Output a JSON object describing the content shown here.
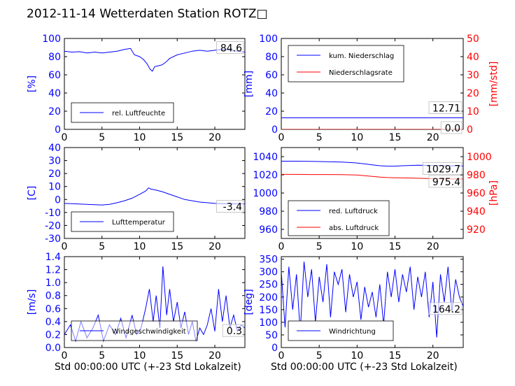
{
  "figure": {
    "title": "2012-11-14 Wetterdaten Station ROTZ□",
    "xlabel_left": "Std 00:00:00 UTC (+-23 Std Lokalzeit)",
    "xlabel_right": "Std 00:00:00 UTC (+-23 Std Lokalzeit)"
  },
  "chart_data": [
    {
      "id": "humidity",
      "type": "line",
      "title": "",
      "xlabel": "",
      "ylabel": "[%]",
      "xlim": [
        0,
        24
      ],
      "ylim": [
        0,
        100
      ],
      "xticks": [
        0,
        5,
        10,
        15,
        20
      ],
      "yticks": [
        0,
        20,
        40,
        60,
        80,
        100
      ],
      "axis_color": "#0000ff",
      "legend_position": "lower-left",
      "current_value_label": "84.6",
      "series": [
        {
          "name": "rel. Luftfeuchte",
          "color": "#0000ff",
          "x": [
            0,
            1,
            2,
            3,
            4,
            5,
            6,
            7,
            8,
            8.8,
            9.3,
            10,
            10.5,
            11,
            11.4,
            11.7,
            12,
            12.5,
            13,
            13.5,
            14,
            15,
            16,
            17,
            18,
            19,
            20,
            21,
            22,
            23,
            24
          ],
          "y": [
            86,
            85,
            85.5,
            84,
            85,
            84,
            85,
            86,
            88,
            89,
            82,
            80,
            77,
            72,
            66,
            64,
            69,
            70,
            71,
            74,
            78,
            82,
            84,
            86,
            87,
            86,
            87,
            88,
            87,
            86,
            85
          ]
        }
      ]
    },
    {
      "id": "precipitation",
      "type": "line",
      "title": "",
      "xlabel": "",
      "ylabel": "[mm]",
      "ylabel_right": "[mm/std]",
      "xlim": [
        0,
        24
      ],
      "ylim": [
        0,
        100
      ],
      "ylim_right": [
        0,
        50
      ],
      "xticks": [
        0,
        5,
        10,
        15,
        20
      ],
      "yticks": [
        0,
        20,
        40,
        60,
        80,
        100
      ],
      "yticks_right": [
        0,
        10,
        20,
        30,
        40,
        50
      ],
      "axis_color": "#0000ff",
      "axis_color_right": "#ff0000",
      "legend_position": "upper-left",
      "current_value_labels": [
        "12.71",
        "0.0"
      ],
      "series": [
        {
          "name": "kum. Niederschlag",
          "color": "#0000ff",
          "axis": "left",
          "x": [
            0,
            24
          ],
          "y": [
            12.71,
            12.71
          ]
        },
        {
          "name": "Niederschlagsrate",
          "color": "#ff0000",
          "axis": "right",
          "x": [
            0,
            24
          ],
          "y": [
            0.0,
            0.0
          ]
        }
      ]
    },
    {
      "id": "temperature",
      "type": "line",
      "title": "",
      "xlabel": "",
      "ylabel": "[C]",
      "xlim": [
        0,
        24
      ],
      "ylim": [
        -30,
        40
      ],
      "xticks": [
        0,
        5,
        10,
        15,
        20
      ],
      "yticks": [
        -30,
        -20,
        -10,
        0,
        10,
        20,
        30,
        40
      ],
      "axis_color": "#0000ff",
      "legend_position": "lower-left",
      "current_value_label": "-3.4",
      "series": [
        {
          "name": "Lufttemperatur",
          "color": "#0000ff",
          "x": [
            0,
            1,
            2,
            3,
            4,
            5,
            6,
            7,
            8,
            9,
            10,
            10.8,
            11.2,
            11.5,
            12,
            13,
            14,
            15,
            16,
            17,
            18,
            19,
            20,
            21,
            22,
            23,
            24
          ],
          "y": [
            -3,
            -3.2,
            -3.5,
            -3.8,
            -4,
            -4.2,
            -3.8,
            -2.5,
            -1,
            1,
            4,
            6.5,
            9,
            8,
            7.5,
            6,
            4,
            2,
            0,
            -1,
            -2,
            -2.5,
            -3,
            -3.2,
            -3.3,
            -3.4,
            -3.4
          ]
        }
      ]
    },
    {
      "id": "pressure",
      "type": "line",
      "title": "",
      "xlabel": "",
      "ylabel": "",
      "ylabel_right": "[hPa]",
      "xlim": [
        0,
        24
      ],
      "ylim": [
        950,
        1050
      ],
      "ylim_right": [
        910,
        1010
      ],
      "xticks": [
        0,
        5,
        10,
        15,
        20
      ],
      "yticks": [
        960,
        980,
        1000,
        1020,
        1040
      ],
      "yticks_right": [
        920,
        940,
        960,
        980,
        1000
      ],
      "axis_color": "#0000ff",
      "axis_color_right": "#ff0000",
      "legend_position": "lower-left",
      "current_value_labels": [
        "1029.7",
        "975.4"
      ],
      "series": [
        {
          "name": "red. Luftdruck",
          "color": "#0000ff",
          "axis": "left",
          "x": [
            0,
            2,
            4,
            6,
            8,
            10,
            11,
            12,
            13,
            14,
            15,
            16,
            18,
            20,
            22,
            24
          ],
          "y": [
            1035,
            1035,
            1034.8,
            1034.5,
            1034,
            1033,
            1032,
            1031,
            1030,
            1029.5,
            1029.5,
            1030,
            1030.5,
            1030.3,
            1030,
            1029.7
          ]
        },
        {
          "name": "abs. Luftdruck",
          "color": "#ff0000",
          "axis": "right",
          "x": [
            0,
            2,
            4,
            6,
            8,
            10,
            11,
            12,
            13,
            14,
            15,
            16,
            18,
            20,
            22,
            24
          ],
          "y": [
            980.5,
            980.5,
            980.3,
            980.3,
            980.2,
            979.8,
            979,
            978.2,
            977.5,
            977,
            976.8,
            976.6,
            976.2,
            975.8,
            975.5,
            975.4
          ]
        }
      ]
    },
    {
      "id": "windspeed",
      "type": "line",
      "title": "",
      "xlabel": "",
      "ylabel": "[m/s]",
      "xlim": [
        0,
        24
      ],
      "ylim": [
        0,
        1.4
      ],
      "xticks": [
        0,
        5,
        10,
        15,
        20
      ],
      "yticks": [
        0.0,
        0.2,
        0.4,
        0.6,
        0.8,
        1.0,
        1.2,
        1.4
      ],
      "axis_color": "#0000ff",
      "legend_position": "lower-left",
      "current_value_label": "0.3",
      "series": [
        {
          "name": "Windgeschwindigkeit",
          "color": "#0000ff",
          "x": [
            0,
            0.8,
            1.5,
            2.2,
            3,
            3.8,
            4.5,
            5.2,
            6,
            6.8,
            7.5,
            8.2,
            9,
            9.6,
            10.2,
            10.8,
            11.3,
            11.8,
            12.2,
            12.7,
            13.1,
            13.6,
            14,
            14.5,
            15,
            15.5,
            16,
            16.5,
            17,
            17.5,
            18,
            18.5,
            19,
            19.5,
            20,
            20.5,
            21,
            21.5,
            22,
            22.5,
            23,
            23.5,
            24
          ],
          "y": [
            0.2,
            0.35,
            0.1,
            0.4,
            0.15,
            0.3,
            0.5,
            0.1,
            0.35,
            0.2,
            0.45,
            0.15,
            0.5,
            0.2,
            0.3,
            0.6,
            0.9,
            0.4,
            0.8,
            0.3,
            1.25,
            0.5,
            0.9,
            0.4,
            0.7,
            0.3,
            0.55,
            0.2,
            0.4,
            0.1,
            0.3,
            0.2,
            0.35,
            0.6,
            0.25,
            0.9,
            0.4,
            0.8,
            0.3,
            0.5,
            0.25,
            0.35,
            0.3
          ]
        }
      ]
    },
    {
      "id": "winddirection",
      "type": "line",
      "title": "",
      "xlabel": "",
      "ylabel": "[deg]",
      "xlim": [
        0,
        24
      ],
      "ylim": [
        0,
        360
      ],
      "xticks": [
        0,
        5,
        10,
        15,
        20
      ],
      "yticks": [
        0,
        50,
        100,
        150,
        200,
        250,
        300,
        350
      ],
      "axis_color": "#0000ff",
      "legend_position": "lower-left",
      "current_value_label": "164.2",
      "series": [
        {
          "name": "Windrichtung",
          "color": "#0000ff",
          "x": [
            0,
            0.5,
            1,
            1.5,
            2,
            2.5,
            3,
            3.5,
            4,
            4.5,
            5,
            5.5,
            6,
            6.5,
            7,
            7.5,
            8,
            8.5,
            9,
            9.5,
            10,
            10.5,
            11,
            11.5,
            12,
            12.5,
            13,
            13.5,
            14,
            14.5,
            15,
            15.5,
            16,
            16.5,
            17,
            17.5,
            18,
            18.5,
            19,
            19.5,
            20,
            20.5,
            21,
            21.5,
            22,
            22.5,
            23,
            23.5,
            24
          ],
          "y": [
            300,
            80,
            320,
            150,
            290,
            60,
            340,
            200,
            310,
            100,
            280,
            180,
            330,
            120,
            300,
            250,
            310,
            140,
            290,
            200,
            260,
            110,
            240,
            160,
            220,
            120,
            250,
            90,
            300,
            200,
            310,
            180,
            290,
            220,
            320,
            150,
            280,
            200,
            300,
            120,
            260,
            40,
            290,
            180,
            320,
            140,
            270,
            200,
            164
          ]
        }
      ]
    }
  ]
}
